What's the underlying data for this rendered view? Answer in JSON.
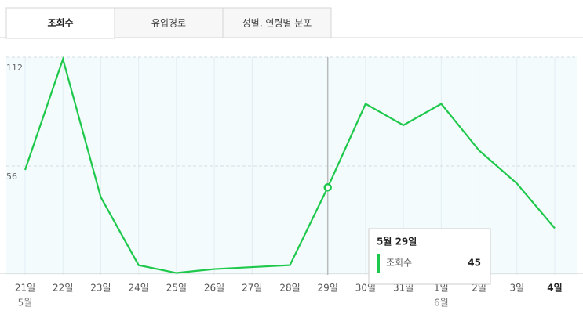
{
  "tabs": [
    "조회수",
    "유입경로",
    "성별, 연령별 분포"
  ],
  "chart_data": {
    "type": "line",
    "categories": [
      "21일",
      "22일",
      "23일",
      "24일",
      "25일",
      "26일",
      "27일",
      "28일",
      "29일",
      "30일",
      "31일",
      "1일",
      "2일",
      "3일",
      "4일"
    ],
    "month_labels": [
      "5월",
      null,
      null,
      null,
      null,
      null,
      null,
      null,
      null,
      null,
      null,
      "6월",
      null,
      null,
      null
    ],
    "series": [
      {
        "name": "조회수",
        "color": "#1ec84a",
        "values": [
          54,
          111,
          40,
          5,
          1,
          3,
          4,
          5,
          45,
          88,
          77,
          88,
          64,
          47,
          24
        ]
      }
    ],
    "ylim": [
      0,
      112
    ],
    "yticks": [
      56,
      112
    ],
    "grid": true,
    "highlight_index": 8,
    "tooltip_title": "5월 29일"
  }
}
